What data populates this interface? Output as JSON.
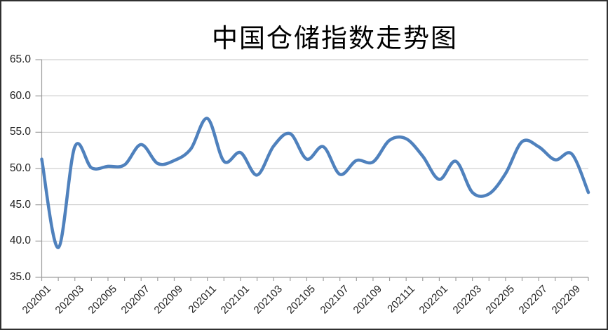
{
  "window": {
    "background": "#ffffff",
    "border_color": "#303030"
  },
  "chart_data": {
    "type": "line",
    "title": "中国仓储指数走势图",
    "series_name": "中国仓储指数",
    "smooth": true,
    "legend": "none",
    "grid": "horizontal",
    "xlabel": "",
    "ylabel": "",
    "ylim": [
      35.0,
      65.0
    ],
    "y_ticks": [
      35,
      40,
      45,
      50,
      55,
      60,
      65
    ],
    "y_tick_labels": [
      "35.0",
      "40.0",
      "45.0",
      "50.0",
      "55.0",
      "60.0",
      "65.0"
    ],
    "x_label_step": 2,
    "x": [
      "202001",
      "202002",
      "202003",
      "202004",
      "202005",
      "202006",
      "202007",
      "202008",
      "202009",
      "202010",
      "202011",
      "202012",
      "202101",
      "202102",
      "202103",
      "202104",
      "202105",
      "202106",
      "202107",
      "202108",
      "202109",
      "202110",
      "202111",
      "202112",
      "202201",
      "202202",
      "202203",
      "202204",
      "202205",
      "202206",
      "202207",
      "202208",
      "202209",
      "202210"
    ],
    "values": [
      51.3,
      39.1,
      53.0,
      50.1,
      50.3,
      50.5,
      53.3,
      50.7,
      51.1,
      52.7,
      56.9,
      51.0,
      52.2,
      49.1,
      53.1,
      54.8,
      51.3,
      53.0,
      49.2,
      51.1,
      50.9,
      53.9,
      54.1,
      51.7,
      48.5,
      51.0,
      46.7,
      46.5,
      49.3,
      53.7,
      53.0,
      51.2,
      52.0,
      46.7
    ],
    "x_labels_shown": [
      "202001",
      "202003",
      "202005",
      "202007",
      "202009",
      "202011",
      "202101",
      "202103",
      "202105",
      "202107",
      "202109",
      "202111",
      "202201",
      "202203",
      "202205",
      "202207",
      "202209"
    ],
    "colors": {
      "line": "#4f81bd",
      "grid": "#c6c6c6",
      "axis": "#9e9e9e",
      "tick_label": "#222222",
      "title": "#000000"
    }
  }
}
